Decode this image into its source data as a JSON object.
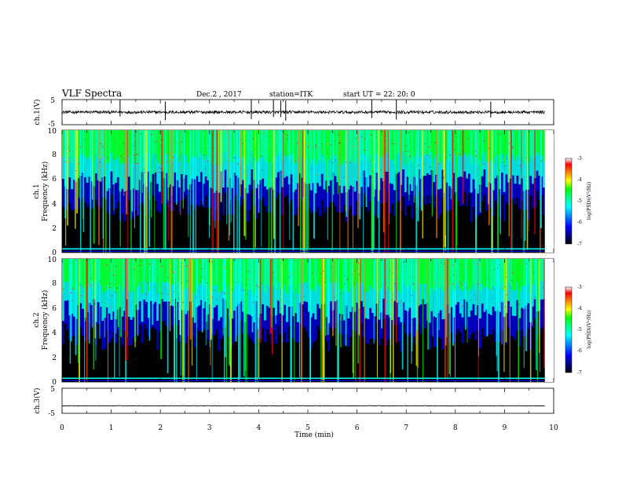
{
  "header": {
    "title": "VLF Spectra",
    "date": "Dec.2 , 2017",
    "station": "station=ITK",
    "start_ut": "start  UT  =   22: 20: 0"
  },
  "chart_data": [
    {
      "type": "line",
      "ylabel": "ch.1(V)",
      "ylim": [
        -5,
        5
      ],
      "yticks": [
        "5",
        "-5"
      ],
      "xlim": [
        0,
        10
      ],
      "series": [
        {
          "baseline": 0,
          "noise_amplitude": 0.6,
          "spikes_at_min": [
            1.18,
            2.1,
            3.85,
            4.3,
            4.45,
            4.55,
            6.3,
            6.8,
            8.72
          ]
        }
      ]
    },
    {
      "type": "heatmap",
      "ylabel": "ch.1",
      "ylabel2": "Frequency (kHz)",
      "xlim": [
        0,
        10
      ],
      "ylim": [
        0,
        10
      ],
      "yticks": [
        "0",
        "2",
        "4",
        "6",
        "8",
        "10"
      ],
      "colorbar": {
        "label": "log(PSD)(V²/Hz)",
        "range": [
          -7,
          -3
        ],
        "ticks": [
          "-3",
          "-4",
          "-5",
          "-6",
          "-7"
        ]
      },
      "data_extent_min": 9.82
    },
    {
      "type": "heatmap",
      "ylabel": "ch.2",
      "ylabel2": "Frequency (kHz)",
      "xlim": [
        0,
        10
      ],
      "ylim": [
        0,
        10
      ],
      "yticks": [
        "0",
        "2",
        "4",
        "6",
        "8",
        "10"
      ],
      "colorbar": {
        "label": "log(PSD)(V²/Hz)",
        "range": [
          -7,
          -3
        ],
        "ticks": [
          "-3",
          "-4",
          "-5",
          "-6",
          "-7"
        ]
      },
      "data_extent_min": 9.82
    },
    {
      "type": "line",
      "ylabel": "ch.3(V)",
      "ylim": [
        -5,
        5
      ],
      "yticks": [
        "5",
        "-5"
      ],
      "xlim": [
        0,
        10
      ],
      "series": [
        {
          "baseline": -2,
          "noise_amplitude": 0.1
        }
      ]
    }
  ],
  "x_axis": {
    "label": "Time  (min)",
    "ticks": [
      "0",
      "1",
      "2",
      "3",
      "4",
      "5",
      "6",
      "7",
      "8",
      "9",
      "10"
    ]
  },
  "colors": {
    "background": "#000000",
    "colormap": [
      "#000000",
      "#00006e",
      "#0000ff",
      "#0080ff",
      "#00ffff",
      "#00ff80",
      "#00ff00",
      "#ffff00",
      "#ff8000",
      "#ff0000",
      "#ffffff"
    ]
  }
}
